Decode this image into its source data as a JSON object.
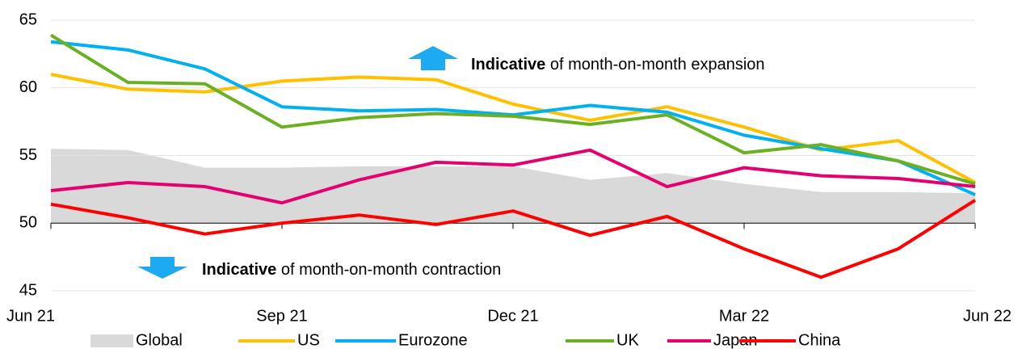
{
  "chart_data": {
    "type": "line",
    "categories": [
      "Jun 21",
      null,
      null,
      "Sep 21",
      null,
      null,
      "Dec 21",
      null,
      null,
      "Mar 22",
      null,
      null,
      "Jun 22"
    ],
    "series": [
      {
        "name": "Global",
        "type": "area",
        "color": "#d9d9d9",
        "values": [
          55.5,
          55.4,
          54.1,
          54.1,
          54.2,
          54.2,
          54.2,
          53.2,
          53.7,
          52.9,
          52.3,
          52.3,
          52.2
        ]
      },
      {
        "name": "US",
        "color": "#ffc000",
        "values": [
          61.0,
          59.9,
          59.7,
          60.5,
          60.8,
          60.6,
          58.8,
          57.6,
          58.6,
          57.1,
          55.4,
          56.1,
          53.0
        ]
      },
      {
        "name": "Eurozone",
        "color": "#00b0f0",
        "values": [
          63.4,
          62.8,
          61.4,
          58.6,
          58.3,
          58.4,
          58.0,
          58.7,
          58.2,
          56.5,
          55.5,
          54.6,
          52.1
        ]
      },
      {
        "name": "UK",
        "color": "#6ab023",
        "values": [
          63.9,
          60.4,
          60.3,
          57.1,
          57.8,
          58.1,
          57.9,
          57.3,
          58.0,
          55.2,
          55.8,
          54.6,
          52.9
        ]
      },
      {
        "name": "Japan",
        "color": "#e5006f",
        "values": [
          52.4,
          53.0,
          52.7,
          51.5,
          53.2,
          54.5,
          54.3,
          55.4,
          52.7,
          54.1,
          53.5,
          53.3,
          52.7
        ]
      },
      {
        "name": "China",
        "color": "#ff0000",
        "values": [
          51.4,
          50.4,
          49.2,
          50.0,
          50.6,
          49.9,
          50.9,
          49.1,
          50.5,
          48.1,
          46.0,
          48.1,
          51.7
        ]
      }
    ],
    "ylim": [
      45,
      65
    ],
    "yticks": [
      45,
      50,
      55,
      60,
      65
    ],
    "grid": true,
    "xaxis_crosses": 50,
    "legend": "bottom",
    "annotations": [
      {
        "bold": "Indicative",
        "text": "of month-on-month expansion"
      },
      {
        "bold": "Indicative",
        "text": "of month-on-month contraction"
      }
    ]
  }
}
